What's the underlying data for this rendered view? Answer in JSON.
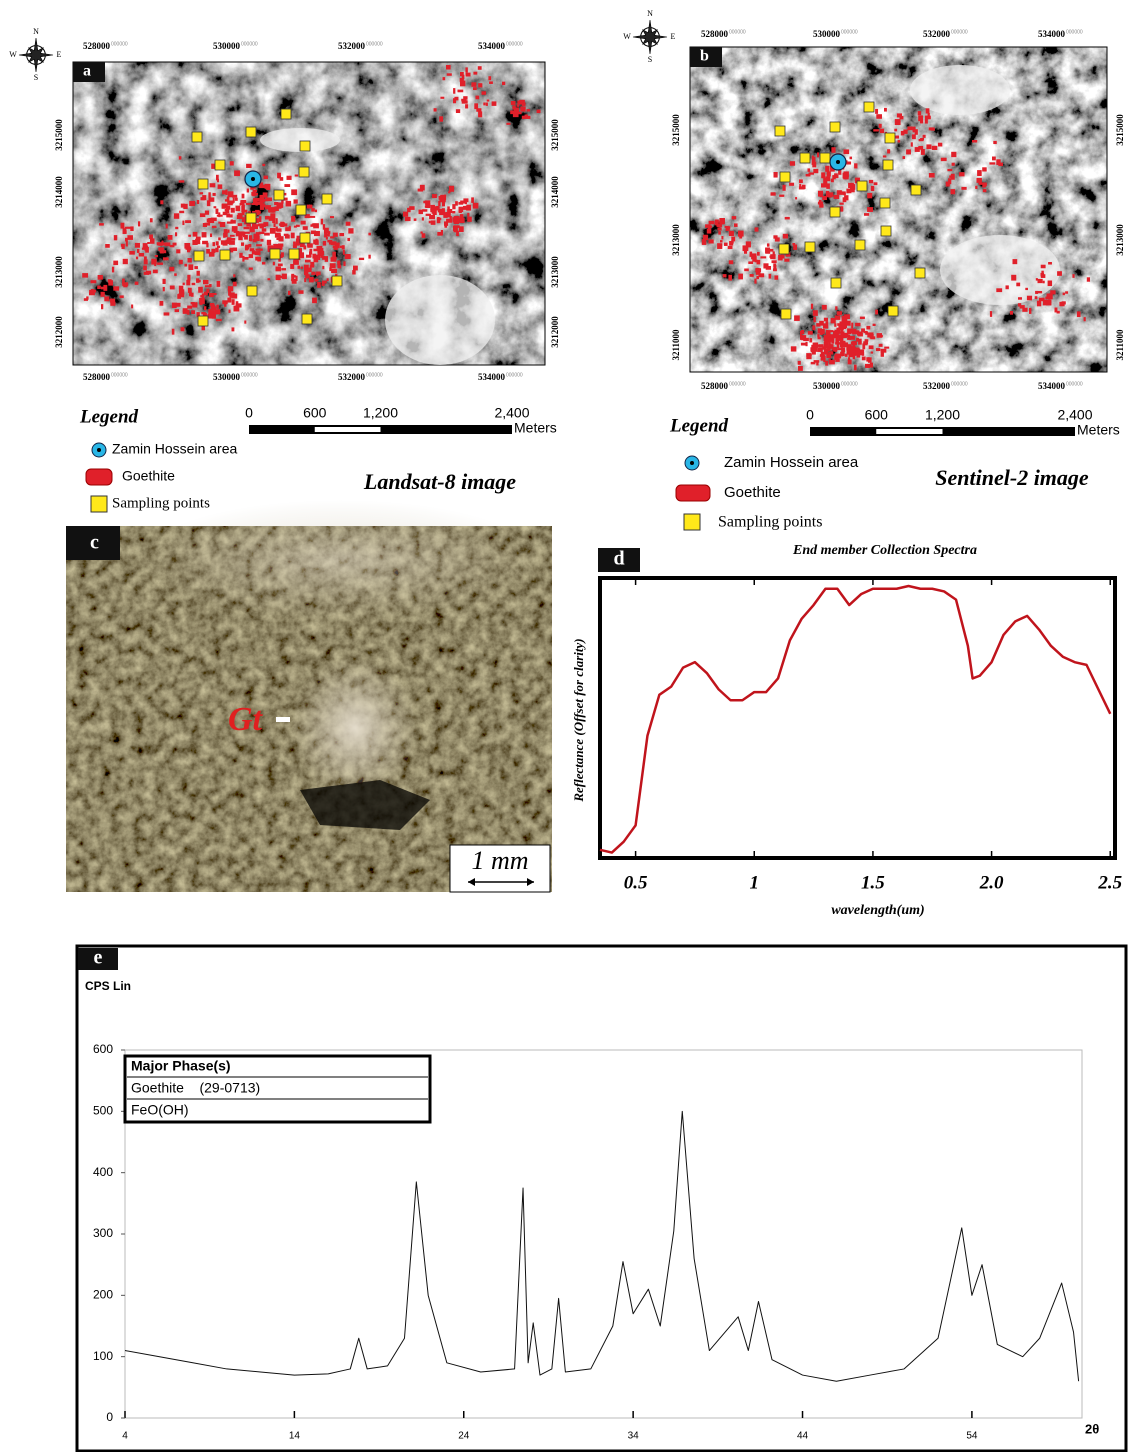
{
  "map_a": {
    "label": "a",
    "x_labels": [
      "528000",
      "530000",
      "532000",
      "534000"
    ],
    "y_labels": [
      "3215000",
      "3214000",
      "3213000",
      "3212000"
    ],
    "coord_suffix": "000000",
    "compass": [
      "N",
      "E",
      "S",
      "W"
    ],
    "legend": {
      "title": "Legend",
      "items": [
        "Zamin Hossein area",
        "Goethite",
        "Sampling points"
      ]
    },
    "scale_bar": {
      "labels": [
        "0",
        "600",
        "1,200",
        "2,400"
      ],
      "unit": "Meters"
    },
    "caption": "Landsat-8 image"
  },
  "map_b": {
    "label": "b",
    "x_labels": [
      "528000",
      "530000",
      "532000",
      "534000"
    ],
    "y_labels": [
      "3215000",
      "3213000",
      "3211000"
    ],
    "coord_suffix": "000000",
    "compass": [
      "N",
      "E",
      "S",
      "W"
    ],
    "legend": {
      "title": "Legend",
      "items": [
        "Zamin Hossein area",
        "Goethite",
        "Sampling points"
      ]
    },
    "scale_bar": {
      "labels": [
        "0",
        "600",
        "1,200",
        "2,400"
      ],
      "unit": "Meters"
    },
    "caption": "Sentinel-2 image"
  },
  "photo_c": {
    "label": "c",
    "mineral": "Gt",
    "scale": "1 mm"
  },
  "chart_data": [
    {
      "type": "line",
      "panel_label": "d",
      "title": "End member Collection Spectra",
      "x_label": "wavelength(um)",
      "y_label": "Reflectance (Offset for clarity)",
      "x": [
        0.35,
        0.4,
        0.45,
        0.5,
        0.55,
        0.6,
        0.65,
        0.7,
        0.75,
        0.8,
        0.85,
        0.9,
        0.95,
        1.0,
        1.05,
        1.1,
        1.15,
        1.2,
        1.25,
        1.3,
        1.35,
        1.4,
        1.45,
        1.5,
        1.55,
        1.6,
        1.65,
        1.7,
        1.75,
        1.8,
        1.85,
        1.9,
        1.92,
        1.95,
        2.0,
        2.05,
        2.1,
        2.15,
        2.2,
        2.25,
        2.3,
        2.35,
        2.4,
        2.45,
        2.5
      ],
      "values": [
        0.03,
        0.02,
        0.06,
        0.12,
        0.45,
        0.6,
        0.63,
        0.7,
        0.72,
        0.68,
        0.62,
        0.58,
        0.58,
        0.61,
        0.61,
        0.66,
        0.8,
        0.88,
        0.93,
        0.99,
        0.99,
        0.93,
        0.97,
        0.99,
        0.99,
        0.99,
        1.0,
        0.99,
        0.99,
        0.98,
        0.95,
        0.78,
        0.66,
        0.67,
        0.72,
        0.82,
        0.87,
        0.89,
        0.84,
        0.78,
        0.74,
        0.72,
        0.71,
        0.62,
        0.53
      ],
      "color": "#c0141c",
      "xlim": [
        0.35,
        2.52
      ],
      "xticks": [
        0.5,
        1,
        1.5,
        {
          "value": 2,
          "label": "2.0"
        },
        2.5
      ],
      "ylim": [
        0,
        1
      ]
    },
    {
      "type": "line",
      "panel_label": "e",
      "x_label": "2θ",
      "y_label": "CPS Lin",
      "x": [
        4,
        6,
        8,
        10,
        12,
        14,
        16,
        17.3,
        17.8,
        18.3,
        19.5,
        20.5,
        21.2,
        21.9,
        23,
        25,
        27,
        27.5,
        27.8,
        28.1,
        28.5,
        29.2,
        29.6,
        30,
        31.5,
        32.8,
        33.4,
        34,
        34.9,
        35.6,
        36.4,
        36.9,
        37.6,
        38.5,
        40.2,
        40.8,
        41.4,
        42.2,
        44,
        46,
        48,
        50,
        52,
        53.4,
        54,
        54.6,
        55.5,
        57,
        58,
        59.3,
        60,
        60.3
      ],
      "values": [
        110,
        100,
        90,
        80,
        75,
        70,
        72,
        80,
        130,
        80,
        85,
        130,
        385,
        200,
        90,
        75,
        80,
        375,
        90,
        155,
        70,
        80,
        195,
        75,
        80,
        150,
        255,
        170,
        210,
        150,
        305,
        500,
        260,
        110,
        165,
        110,
        190,
        95,
        70,
        60,
        70,
        80,
        130,
        310,
        200,
        250,
        120,
        100,
        130,
        220,
        140,
        60
      ],
      "color": "#111111",
      "xlim": [
        4,
        60.5
      ],
      "xticks": [
        4,
        14,
        24,
        34,
        44,
        54
      ],
      "ylim": [
        0,
        600
      ],
      "yticks": [
        0,
        100,
        200,
        300,
        400,
        500,
        600
      ],
      "legend_box": {
        "title": "Major Phase(s)",
        "rows": [
          "Goethite    (29-0713)",
          "FeO(OH)"
        ]
      }
    }
  ]
}
